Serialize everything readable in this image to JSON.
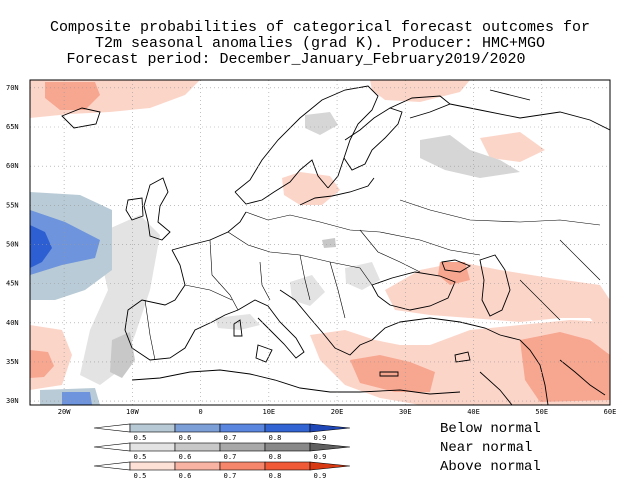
{
  "title": {
    "line1": "Composite probabilities of categorical forecast outcomes for",
    "line2": "T2m seasonal anomalies (grad K). Producer: HMC+MGO",
    "line3": "Forecast period: December_January_February2019/2020"
  },
  "map": {
    "lat_labels": [
      "70N",
      "65N",
      "60N",
      "55N",
      "50N",
      "45N",
      "40N",
      "35N",
      "30N"
    ],
    "lon_labels": [
      "20W",
      "10W",
      "0",
      "10E",
      "20E",
      "30E",
      "40E",
      "50E",
      "60E"
    ],
    "lat_values": [
      70,
      65,
      60,
      55,
      50,
      45,
      40,
      35,
      30
    ],
    "lon_values": [
      -20,
      -10,
      0,
      10,
      20,
      30,
      40,
      50,
      60
    ],
    "extent": {
      "lon_min": -25,
      "lon_max": 60,
      "lat_min": 29.5,
      "lat_max": 71
    }
  },
  "legend": {
    "ticks": [
      "0.5",
      "0.6",
      "0.7",
      "0.8",
      "0.9"
    ],
    "bars": [
      {
        "label": "Below normal",
        "colors": [
          "#b7c9d4",
          "#7d9fd8",
          "#5a86e0",
          "#3264d4",
          "#1f47b8"
        ]
      },
      {
        "label": "Near normal",
        "colors": [
          "#e3e3e3",
          "#c8c8c8",
          "#a8a8a8",
          "#888888",
          "#606060"
        ]
      },
      {
        "label": "Above normal",
        "colors": [
          "#fde0d6",
          "#f9b3a2",
          "#f5866b",
          "#f05a36",
          "#d83a14"
        ]
      }
    ]
  },
  "colors": {
    "above_light": "#fcd5c9",
    "above_medium": "#f7a690",
    "near": "#d6d6d6",
    "below_light": "#b9cbd6",
    "below_medium": "#6d94dc",
    "below_dark": "#2d5fd2",
    "grid": "#999999"
  }
}
